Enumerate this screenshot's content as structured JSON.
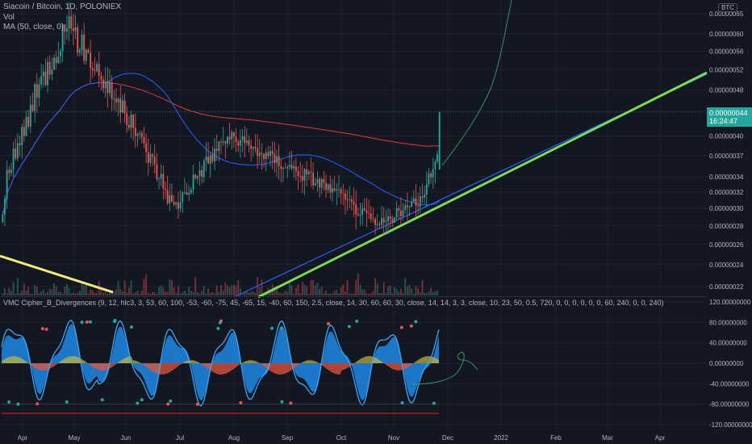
{
  "header": {
    "symbol_line": "Siacoin / Bitcoin, 1D, POLONIEX",
    "vol_label": "Vol",
    "ma_label": "MA (50, close, 0)",
    "currency_tag": "BTC"
  },
  "price_badge": {
    "price": "0.00000044",
    "countdown": "16:24:47"
  },
  "indicator": {
    "label": "VMC Cipher_B_Divergences (9, 12, hlc3, 3, 53, 60, 100, -53, -60, -75, 45, -65, 15, -40, 60, 150, 2.5, close, 14, 30, 60, 60, 30, close, 14, 14, 3, 3, close, 10, 23, 50, 0.5, 720, 0, 0, 0, 0, 0, 0, 60, 240, 0, 0, 240)"
  },
  "colors": {
    "background": "#131722",
    "up": "#26a69a",
    "down": "#ef5350",
    "ma50": "#2962ff",
    "ma200": "#e53935",
    "trend_green": "#7ed957",
    "trend_yellow": "#f2ea7a",
    "wave": "#1e88e5",
    "wave_line": "#42a5f5",
    "money_flow_pos": "#c9b63a",
    "money_flow_neg": "#e3553e"
  },
  "chart_data": [
    {
      "type": "candlestick",
      "title": "Siacoin / Bitcoin, 1D, POLONIEX",
      "x_ticks": [
        "Apr",
        "May",
        "Jun",
        "Jul",
        "Aug",
        "Sep",
        "Oct",
        "Nov",
        "Dec",
        "2022",
        "Feb",
        "Mar",
        "Apr"
      ],
      "y_ticks": [
        "0.00000065",
        "0.00000060",
        "0.00000056",
        "0.00000052",
        "0.00000048",
        "0.00000044",
        "0.00000040",
        "0.00000037",
        "0.00000034",
        "0.00000032",
        "0.00000030",
        "0.00000028",
        "0.00000026",
        "0.00000024",
        "0.00000022"
      ],
      "y_scale": "log",
      "last_price": "0.00000044",
      "segments": [
        {
          "start": 3.1e-07,
          "end": 6.2e-07,
          "n": 30,
          "amp": 0.12
        },
        {
          "start": 6.2e-07,
          "end": 4.8e-07,
          "n": 20,
          "amp": 0.1
        },
        {
          "start": 4.8e-07,
          "end": 3e-07,
          "n": 30,
          "amp": 0.08
        },
        {
          "start": 3e-07,
          "end": 4e-07,
          "n": 25,
          "amp": 0.07
        },
        {
          "start": 4e-07,
          "end": 3.6e-07,
          "n": 25,
          "amp": 0.06
        },
        {
          "start": 3.6e-07,
          "end": 3.3e-07,
          "n": 20,
          "amp": 0.06
        },
        {
          "start": 3.3e-07,
          "end": 2.8e-07,
          "n": 25,
          "amp": 0.05
        },
        {
          "start": 2.8e-07,
          "end": 3.1e-07,
          "n": 20,
          "amp": 0.05
        },
        {
          "start": 3.1e-07,
          "end": 3.7e-07,
          "n": 9,
          "amp": 0.05
        }
      ],
      "final_candle": {
        "open": 3.5e-07,
        "close": 4.4e-07,
        "high": 4.4e-07,
        "low": 3.5e-07
      },
      "series": [
        {
          "name": "MA (50, close, 0)",
          "kind": "ma",
          "period": 50
        },
        {
          "name": "MA200",
          "kind": "ma",
          "period": 200
        }
      ]
    },
    {
      "type": "area",
      "title": "VMC Cipher_B_Divergences",
      "y_ticks": [
        "120.00000000",
        "80.00000000",
        "40.00000000",
        "0.00000000",
        "-40.00000000",
        "-80.00000000",
        "-120.00000000"
      ],
      "ylim": [
        -120,
        120
      ]
    }
  ]
}
